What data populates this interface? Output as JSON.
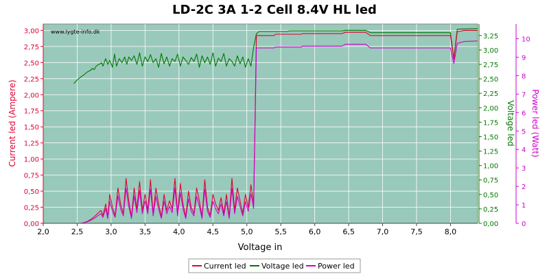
{
  "chart_data": {
    "type": "line",
    "title": "LD-2C 3A 1-2 Cell 8.4V HL led",
    "xlabel": "Voltage in",
    "ylabel_left": "Current led (Ampere)",
    "ylabel_right1": "Voltage led",
    "ylabel_right2": "Power led (Watt)",
    "watermark": "www.lygte-info.dk",
    "xlim": [
      2.0,
      8.4
    ],
    "ylim_left": [
      0,
      3.1
    ],
    "ylim_right1": [
      0,
      3.45
    ],
    "ylim_right2": [
      0,
      10.8
    ],
    "x_ticks": [
      "2,0",
      "2,5",
      "3,0",
      "3,5",
      "4,0",
      "4,5",
      "5,0",
      "5,5",
      "6,0",
      "6,5",
      "7,0",
      "7,5",
      "8,0"
    ],
    "y_left_ticks": [
      "0,00",
      "0,25",
      "0,50",
      "0,75",
      "1,00",
      "1,25",
      "1,50",
      "1,75",
      "2,00",
      "2,25",
      "2,50",
      "2,75",
      "3,00"
    ],
    "y_right1_ticks": [
      "0,00",
      "0,25",
      "0,50",
      "0,75",
      "1,00",
      "1,25",
      "1,50",
      "1,75",
      "2,00",
      "2,25",
      "2,50",
      "2,75",
      "3,00",
      "3,25"
    ],
    "y_right2_ticks": [
      "0",
      "1",
      "2",
      "3",
      "4",
      "5",
      "6",
      "7",
      "8",
      "9",
      "10"
    ],
    "legend_position": "bottom-center",
    "grid": true,
    "series": [
      {
        "name": "Current led",
        "axis": "left",
        "color": "#dd0033",
        "points": [
          [
            2.45,
            0.0
          ],
          [
            2.55,
            0.0
          ],
          [
            2.6,
            0.01
          ],
          [
            2.65,
            0.03
          ],
          [
            2.7,
            0.06
          ],
          [
            2.75,
            0.1
          ],
          [
            2.8,
            0.15
          ],
          [
            2.85,
            0.2
          ],
          [
            2.88,
            0.12
          ],
          [
            2.92,
            0.3
          ],
          [
            2.95,
            0.1
          ],
          [
            2.98,
            0.45
          ],
          [
            3.02,
            0.25
          ],
          [
            3.06,
            0.12
          ],
          [
            3.1,
            0.55
          ],
          [
            3.14,
            0.3
          ],
          [
            3.18,
            0.15
          ],
          [
            3.22,
            0.7
          ],
          [
            3.26,
            0.35
          ],
          [
            3.3,
            0.1
          ],
          [
            3.34,
            0.55
          ],
          [
            3.38,
            0.22
          ],
          [
            3.42,
            0.65
          ],
          [
            3.46,
            0.2
          ],
          [
            3.5,
            0.45
          ],
          [
            3.54,
            0.2
          ],
          [
            3.58,
            0.68
          ],
          [
            3.62,
            0.15
          ],
          [
            3.66,
            0.55
          ],
          [
            3.7,
            0.3
          ],
          [
            3.74,
            0.1
          ],
          [
            3.78,
            0.45
          ],
          [
            3.82,
            0.2
          ],
          [
            3.86,
            0.35
          ],
          [
            3.9,
            0.22
          ],
          [
            3.94,
            0.7
          ],
          [
            3.98,
            0.15
          ],
          [
            4.02,
            0.62
          ],
          [
            4.06,
            0.3
          ],
          [
            4.1,
            0.1
          ],
          [
            4.14,
            0.5
          ],
          [
            4.18,
            0.25
          ],
          [
            4.22,
            0.15
          ],
          [
            4.26,
            0.55
          ],
          [
            4.3,
            0.35
          ],
          [
            4.34,
            0.1
          ],
          [
            4.38,
            0.68
          ],
          [
            4.42,
            0.25
          ],
          [
            4.46,
            0.12
          ],
          [
            4.5,
            0.45
          ],
          [
            4.54,
            0.3
          ],
          [
            4.58,
            0.2
          ],
          [
            4.62,
            0.4
          ],
          [
            4.66,
            0.15
          ],
          [
            4.7,
            0.45
          ],
          [
            4.74,
            0.1
          ],
          [
            4.78,
            0.7
          ],
          [
            4.82,
            0.2
          ],
          [
            4.86,
            0.55
          ],
          [
            4.9,
            0.35
          ],
          [
            4.94,
            0.15
          ],
          [
            4.98,
            0.45
          ],
          [
            5.02,
            0.25
          ],
          [
            5.06,
            0.6
          ],
          [
            5.1,
            0.3
          ],
          [
            5.14,
            2.92
          ],
          [
            5.4,
            2.92
          ],
          [
            5.42,
            2.94
          ],
          [
            5.8,
            2.94
          ],
          [
            5.82,
            2.95
          ],
          [
            6.4,
            2.95
          ],
          [
            6.45,
            2.97
          ],
          [
            6.75,
            2.97
          ],
          [
            6.82,
            2.92
          ],
          [
            8.0,
            2.92
          ],
          [
            8.05,
            2.55
          ],
          [
            8.1,
            2.98
          ],
          [
            8.2,
            3.0
          ],
          [
            8.4,
            3.0
          ]
        ]
      },
      {
        "name": "Voltage led",
        "axis": "right1",
        "color": "#007700",
        "points": [
          [
            2.45,
            2.42
          ],
          [
            2.5,
            2.48
          ],
          [
            2.55,
            2.53
          ],
          [
            2.6,
            2.57
          ],
          [
            2.65,
            2.62
          ],
          [
            2.7,
            2.65
          ],
          [
            2.72,
            2.68
          ],
          [
            2.75,
            2.66
          ],
          [
            2.78,
            2.72
          ],
          [
            2.82,
            2.75
          ],
          [
            2.86,
            2.78
          ],
          [
            2.88,
            2.72
          ],
          [
            2.92,
            2.85
          ],
          [
            2.95,
            2.75
          ],
          [
            2.98,
            2.82
          ],
          [
            3.02,
            2.7
          ],
          [
            3.05,
            2.93
          ],
          [
            3.08,
            2.72
          ],
          [
            3.12,
            2.85
          ],
          [
            3.16,
            2.78
          ],
          [
            3.2,
            2.88
          ],
          [
            3.23,
            2.75
          ],
          [
            3.26,
            2.88
          ],
          [
            3.3,
            2.82
          ],
          [
            3.34,
            2.9
          ],
          [
            3.38,
            2.75
          ],
          [
            3.42,
            2.95
          ],
          [
            3.46,
            2.72
          ],
          [
            3.5,
            2.88
          ],
          [
            3.54,
            2.8
          ],
          [
            3.58,
            2.92
          ],
          [
            3.62,
            2.78
          ],
          [
            3.66,
            2.85
          ],
          [
            3.7,
            2.7
          ],
          [
            3.74,
            2.94
          ],
          [
            3.78,
            2.76
          ],
          [
            3.82,
            2.88
          ],
          [
            3.86,
            2.72
          ],
          [
            3.9,
            2.85
          ],
          [
            3.94,
            2.8
          ],
          [
            3.98,
            2.93
          ],
          [
            4.02,
            2.72
          ],
          [
            4.06,
            2.88
          ],
          [
            4.1,
            2.82
          ],
          [
            4.14,
            2.75
          ],
          [
            4.18,
            2.87
          ],
          [
            4.22,
            2.8
          ],
          [
            4.26,
            2.93
          ],
          [
            4.3,
            2.7
          ],
          [
            4.34,
            2.9
          ],
          [
            4.38,
            2.78
          ],
          [
            4.42,
            2.88
          ],
          [
            4.46,
            2.75
          ],
          [
            4.5,
            2.95
          ],
          [
            4.54,
            2.72
          ],
          [
            4.58,
            2.86
          ],
          [
            4.62,
            2.8
          ],
          [
            4.66,
            2.94
          ],
          [
            4.7,
            2.72
          ],
          [
            4.74,
            2.85
          ],
          [
            4.78,
            2.8
          ],
          [
            4.82,
            2.72
          ],
          [
            4.86,
            2.9
          ],
          [
            4.9,
            2.76
          ],
          [
            4.94,
            2.88
          ],
          [
            4.98,
            2.7
          ],
          [
            5.02,
            2.85
          ],
          [
            5.06,
            2.72
          ],
          [
            5.1,
            3.05
          ],
          [
            5.14,
            3.28
          ],
          [
            5.18,
            3.32
          ],
          [
            5.6,
            3.32
          ],
          [
            5.62,
            3.33
          ],
          [
            6.4,
            3.33
          ],
          [
            6.45,
            3.34
          ],
          [
            6.75,
            3.34
          ],
          [
            6.82,
            3.3
          ],
          [
            8.0,
            3.3
          ],
          [
            8.05,
            2.85
          ],
          [
            8.1,
            3.36
          ],
          [
            8.4,
            3.37
          ]
        ]
      },
      {
        "name": "Power led",
        "axis": "right2",
        "color": "#cc00cc",
        "points": [
          [
            2.45,
            0.0
          ],
          [
            2.55,
            0.0
          ],
          [
            2.6,
            0.03
          ],
          [
            2.65,
            0.08
          ],
          [
            2.7,
            0.16
          ],
          [
            2.75,
            0.26
          ],
          [
            2.8,
            0.4
          ],
          [
            2.85,
            0.52
          ],
          [
            2.88,
            0.32
          ],
          [
            2.92,
            0.8
          ],
          [
            2.95,
            0.26
          ],
          [
            2.98,
            1.18
          ],
          [
            3.02,
            0.65
          ],
          [
            3.06,
            0.32
          ],
          [
            3.1,
            1.48
          ],
          [
            3.14,
            0.78
          ],
          [
            3.18,
            0.4
          ],
          [
            3.22,
            1.9
          ],
          [
            3.26,
            0.92
          ],
          [
            3.3,
            0.26
          ],
          [
            3.34,
            1.48
          ],
          [
            3.38,
            0.58
          ],
          [
            3.42,
            1.78
          ],
          [
            3.46,
            0.52
          ],
          [
            3.5,
            1.2
          ],
          [
            3.54,
            0.52
          ],
          [
            3.58,
            1.85
          ],
          [
            3.62,
            0.4
          ],
          [
            3.66,
            1.46
          ],
          [
            3.7,
            0.78
          ],
          [
            3.74,
            0.26
          ],
          [
            3.78,
            1.2
          ],
          [
            3.82,
            0.52
          ],
          [
            3.86,
            0.92
          ],
          [
            3.9,
            0.58
          ],
          [
            3.94,
            1.9
          ],
          [
            3.98,
            0.4
          ],
          [
            4.02,
            1.66
          ],
          [
            4.06,
            0.78
          ],
          [
            4.1,
            0.26
          ],
          [
            4.14,
            1.32
          ],
          [
            4.18,
            0.65
          ],
          [
            4.22,
            0.4
          ],
          [
            4.26,
            1.46
          ],
          [
            4.3,
            0.92
          ],
          [
            4.34,
            0.26
          ],
          [
            4.38,
            1.85
          ],
          [
            4.42,
            0.65
          ],
          [
            4.46,
            0.32
          ],
          [
            4.5,
            1.18
          ],
          [
            4.54,
            0.78
          ],
          [
            4.58,
            0.52
          ],
          [
            4.62,
            1.05
          ],
          [
            4.66,
            0.4
          ],
          [
            4.7,
            1.18
          ],
          [
            4.74,
            0.26
          ],
          [
            4.78,
            1.9
          ],
          [
            4.82,
            0.52
          ],
          [
            4.86,
            1.46
          ],
          [
            4.9,
            0.92
          ],
          [
            4.94,
            0.4
          ],
          [
            4.98,
            1.18
          ],
          [
            5.02,
            0.65
          ],
          [
            5.06,
            1.6
          ],
          [
            5.1,
            0.8
          ],
          [
            5.14,
            9.5
          ],
          [
            5.4,
            9.5
          ],
          [
            5.42,
            9.55
          ],
          [
            5.8,
            9.55
          ],
          [
            5.82,
            9.6
          ],
          [
            6.4,
            9.6
          ],
          [
            6.45,
            9.7
          ],
          [
            6.75,
            9.7
          ],
          [
            6.82,
            9.5
          ],
          [
            8.0,
            9.5
          ],
          [
            8.05,
            8.65
          ],
          [
            8.1,
            9.75
          ],
          [
            8.2,
            9.85
          ],
          [
            8.4,
            9.88
          ]
        ]
      }
    ]
  },
  "legend": [
    {
      "label": "Current led",
      "color": "#dd0033"
    },
    {
      "label": "Voltage led",
      "color": "#007700"
    },
    {
      "label": "Power led",
      "color": "#cc00cc"
    }
  ]
}
